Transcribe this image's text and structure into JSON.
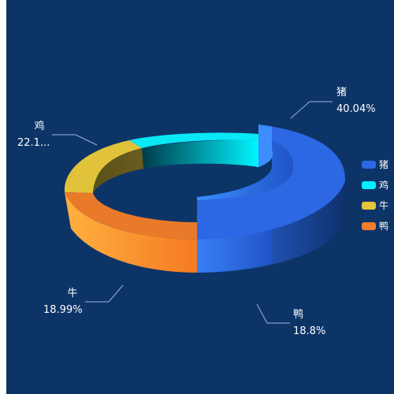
{
  "colors": {
    "background": "#0d3467",
    "pig": "#2a68e6",
    "chicken": "#00f0ff",
    "cow": "#e3c63c",
    "duck": "#f07e2e"
  },
  "chart_data": {
    "type": "pie",
    "variant": "3d-donut",
    "title": "",
    "legend_position": "right",
    "series": [
      {
        "name": "猪",
        "value": 40.04,
        "label": "40.04%",
        "color": "#2a68e6"
      },
      {
        "name": "鸭",
        "value": 18.8,
        "label": "18.8%",
        "color": "#f07e2e"
      },
      {
        "name": "牛",
        "value": 18.99,
        "label": "18.99%",
        "color": "#e3c63c"
      },
      {
        "name": "鸡",
        "value": 22.17,
        "label": "22.1...",
        "color": "#00f0ff"
      }
    ],
    "legend": [
      "猪",
      "鸡",
      "牛",
      "鸭"
    ]
  }
}
